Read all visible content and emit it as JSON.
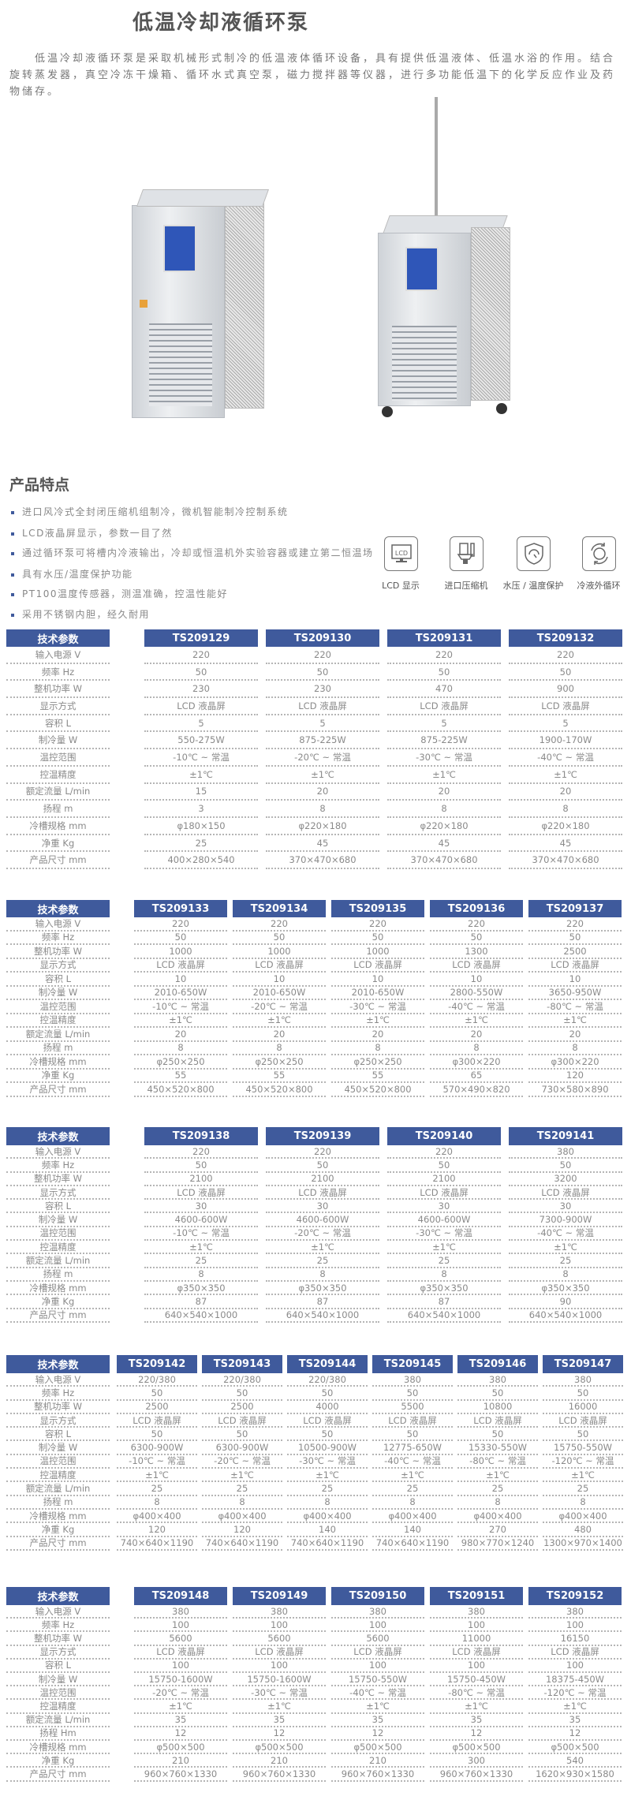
{
  "title": "低温冷却液循环泵",
  "intro": "低温冷却液循环泵是采取机械形式制冷的低温液体循环设备，具有提供低温液体、低温水浴的作用。结合旋转蒸发器，真空冷冻干燥箱、循环水式真空泵，磁力搅拌器等仪器，进行多功能低温下的化学反应作业及药物储存。",
  "features": {
    "heading": "产品特点",
    "items": [
      "进口风冷式全封闭压缩机组制冷，微机智能制冷控制系统",
      "LCD液晶屏显示，参数一目了然",
      "通过循环泵可将槽内冷液输出，冷却或恒温机外实验容器或建立第二恒温场",
      "具有水压/温度保护功能",
      "PT100温度传感器，测温准确，控温性能好",
      "采用不锈钢内胆，经久耐用"
    ],
    "icons": [
      {
        "icon": "lcd-icon",
        "label": "LCD 显示",
        "glyph": "LCD"
      },
      {
        "icon": "compressor-icon",
        "label": "进口压缩机"
      },
      {
        "icon": "shield-gauge-icon",
        "label": "水压 / 温度保护"
      },
      {
        "icon": "circulation-icon",
        "label": "冷液外循环"
      }
    ]
  },
  "colors": {
    "header": "#3f5a9c",
    "text": "#888888"
  },
  "tables": [
    {
      "header": "技术参数",
      "models": [
        "TS209129",
        "TS209130",
        "TS209131",
        "TS209132"
      ],
      "rows": [
        {
          "label": "输入电源 V",
          "values": [
            "220",
            "220",
            "220",
            "220"
          ]
        },
        {
          "label": "频率 Hz",
          "values": [
            "50",
            "50",
            "50",
            "50"
          ]
        },
        {
          "label": "整机功率 W",
          "values": [
            "230",
            "230",
            "470",
            "900"
          ]
        },
        {
          "label": "显示方式",
          "values": [
            "LCD 液晶屏",
            "LCD 液晶屏",
            "LCD 液晶屏",
            "LCD 液晶屏"
          ]
        },
        {
          "label": "容积 L",
          "values": [
            "5",
            "5",
            "5",
            "5"
          ]
        },
        {
          "label": "制冷量 W",
          "values": [
            "550-275W",
            "875-225W",
            "875-225W",
            "1900-170W"
          ]
        },
        {
          "label": "温控范围",
          "values": [
            "-10℃ ~ 常温",
            "-20℃ ~ 常温",
            "-30℃ ~ 常温",
            "-40℃ ~ 常温"
          ]
        },
        {
          "label": "控温精度",
          "values": [
            "±1℃",
            "±1℃",
            "±1℃",
            "±1℃"
          ]
        },
        {
          "label": "额定流量 L/min",
          "values": [
            "15",
            "20",
            "20",
            "20"
          ]
        },
        {
          "label": "扬程 m",
          "values": [
            "3",
            "8",
            "8",
            "8"
          ]
        },
        {
          "label": "冷槽规格 mm",
          "values": [
            "φ180×150",
            "φ220×180",
            "φ220×180",
            "φ220×180"
          ]
        },
        {
          "label": "净重 Kg",
          "values": [
            "25",
            "45",
            "45",
            "45"
          ]
        },
        {
          "label": "产品尺寸 mm",
          "values": [
            "400×280×540",
            "370×470×680",
            "370×470×680",
            "370×470×680"
          ]
        }
      ]
    },
    {
      "header": "技术参数",
      "models": [
        "TS209133",
        "TS209134",
        "TS209135",
        "TS209136",
        "TS209137"
      ],
      "rows": [
        {
          "label": "输入电源 V",
          "values": [
            "220",
            "220",
            "220",
            "220",
            "220"
          ]
        },
        {
          "label": "频率 Hz",
          "values": [
            "50",
            "50",
            "50",
            "50",
            "50"
          ]
        },
        {
          "label": "整机功率 W",
          "values": [
            "1000",
            "1000",
            "1000",
            "1300",
            "2500"
          ]
        },
        {
          "label": "显示方式",
          "values": [
            "LCD 液晶屏",
            "LCD 液晶屏",
            "LCD 液晶屏",
            "LCD 液晶屏",
            "LCD 液晶屏"
          ]
        },
        {
          "label": "容积 L",
          "values": [
            "10",
            "10",
            "10",
            "10",
            "10"
          ]
        },
        {
          "label": "制冷量 W",
          "values": [
            "2010-650W",
            "2010-650W",
            "2010-650W",
            "2800-550W",
            "3650-950W"
          ]
        },
        {
          "label": "温控范围",
          "values": [
            "-10℃ ~ 常温",
            "-20℃ ~ 常温",
            "-30℃ ~ 常温",
            "-40℃ ~ 常温",
            "-80℃ ~ 常温"
          ]
        },
        {
          "label": "控温精度",
          "values": [
            "±1℃",
            "±1℃",
            "±1℃",
            "±1℃",
            "±1℃"
          ]
        },
        {
          "label": "额定流量 L/min",
          "values": [
            "20",
            "20",
            "20",
            "20",
            "20"
          ]
        },
        {
          "label": "扬程 m",
          "values": [
            "8",
            "8",
            "8",
            "8",
            "8"
          ]
        },
        {
          "label": "冷槽规格 mm",
          "values": [
            "φ250×250",
            "φ250×250",
            "φ250×250",
            "φ300×220",
            "φ300×220"
          ]
        },
        {
          "label": "净重 Kg",
          "values": [
            "55",
            "55",
            "55",
            "65",
            "120"
          ]
        },
        {
          "label": "产品尺寸 mm",
          "values": [
            "450×520×800",
            "450×520×800",
            "450×520×800",
            "570×490×820",
            "730×580×890"
          ]
        }
      ]
    },
    {
      "header": "技术参数",
      "models": [
        "TS209138",
        "TS209139",
        "TS209140",
        "TS209141"
      ],
      "rows": [
        {
          "label": "输入电源 V",
          "values": [
            "220",
            "220",
            "220",
            "380"
          ]
        },
        {
          "label": "频率 Hz",
          "values": [
            "50",
            "50",
            "50",
            "50"
          ]
        },
        {
          "label": "整机功率 W",
          "values": [
            "2100",
            "2100",
            "2100",
            "3200"
          ]
        },
        {
          "label": "显示方式",
          "values": [
            "LCD 液晶屏",
            "LCD 液晶屏",
            "LCD 液晶屏",
            "LCD 液晶屏"
          ]
        },
        {
          "label": "容积 L",
          "values": [
            "30",
            "30",
            "30",
            "30"
          ]
        },
        {
          "label": "制冷量 W",
          "values": [
            "4600-600W",
            "4600-600W",
            "4600-600W",
            "7300-900W"
          ]
        },
        {
          "label": "温控范围",
          "values": [
            "-10℃ ~ 常温",
            "-20℃ ~ 常温",
            "-30℃ ~ 常温",
            "-40℃ ~ 常温"
          ]
        },
        {
          "label": "控温精度",
          "values": [
            "±1℃",
            "±1℃",
            "±1℃",
            "±1℃"
          ]
        },
        {
          "label": "额定流量 L/min",
          "values": [
            "25",
            "25",
            "25",
            "25"
          ]
        },
        {
          "label": "扬程 m",
          "values": [
            "8",
            "8",
            "8",
            "8"
          ]
        },
        {
          "label": "冷槽规格 mm",
          "values": [
            "φ350×350",
            "φ350×350",
            "φ350×350",
            "φ350×350"
          ]
        },
        {
          "label": "净重 Kg",
          "values": [
            "87",
            "87",
            "87",
            "90"
          ]
        },
        {
          "label": "产品尺寸 mm",
          "values": [
            "640×540×1000",
            "640×540×1000",
            "640×540×1000",
            "640×540×1000"
          ]
        }
      ]
    },
    {
      "header": "技术参数",
      "models": [
        "TS209142",
        "TS209143",
        "TS209144",
        "TS209145",
        "TS209146",
        "TS209147"
      ],
      "rows": [
        {
          "label": "输入电源 V",
          "values": [
            "220/380",
            "220/380",
            "220/380",
            "380",
            "380",
            "380"
          ]
        },
        {
          "label": "频率 Hz",
          "values": [
            "50",
            "50",
            "50",
            "50",
            "50",
            "50"
          ]
        },
        {
          "label": "整机功率 W",
          "values": [
            "2500",
            "2500",
            "4000",
            "5500",
            "10800",
            "16000"
          ]
        },
        {
          "label": "显示方式",
          "values": [
            "LCD 液晶屏",
            "LCD 液晶屏",
            "LCD 液晶屏",
            "LCD 液晶屏",
            "LCD 液晶屏",
            "LCD 液晶屏"
          ]
        },
        {
          "label": "容积 L",
          "values": [
            "50",
            "50",
            "50",
            "50",
            "50",
            "50"
          ]
        },
        {
          "label": "制冷量 W",
          "values": [
            "6300-900W",
            "6300-900W",
            "10500-900W",
            "12775-650W",
            "15330-550W",
            "15750-550W"
          ]
        },
        {
          "label": "温控范围",
          "values": [
            "-10℃ ~ 常温",
            "-20℃ ~ 常温",
            "-30℃ ~ 常温",
            "-40℃ ~ 常温",
            "-80℃ ~ 常温",
            "-120℃ ~ 常温"
          ]
        },
        {
          "label": "控温精度",
          "values": [
            "±1℃",
            "±1℃",
            "±1℃",
            "±1℃",
            "±1℃",
            "±1℃"
          ]
        },
        {
          "label": "额定流量 L/min",
          "values": [
            "25",
            "25",
            "25",
            "25",
            "25",
            "25"
          ]
        },
        {
          "label": "扬程 m",
          "values": [
            "8",
            "8",
            "8",
            "8",
            "8",
            "8"
          ]
        },
        {
          "label": "冷槽规格 mm",
          "values": [
            "φ400×400",
            "φ400×400",
            "φ400×400",
            "φ400×400",
            "φ400×400",
            "φ400×400"
          ]
        },
        {
          "label": "净重 Kg",
          "values": [
            "120",
            "120",
            "140",
            "140",
            "270",
            "480"
          ]
        },
        {
          "label": "产品尺寸 mm",
          "values": [
            "740×640×1190",
            "740×640×1190",
            "740×640×1190",
            "740×640×1190",
            "980×770×1240",
            "1300×970×1400"
          ]
        }
      ]
    },
    {
      "header": "技术参数",
      "models": [
        "TS209148",
        "TS209149",
        "TS209150",
        "TS209151",
        "TS209152"
      ],
      "rows": [
        {
          "label": "输入电源 V",
          "values": [
            "380",
            "380",
            "380",
            "380",
            "380"
          ]
        },
        {
          "label": "频率 Hz",
          "values": [
            "100",
            "100",
            "100",
            "100",
            "100"
          ]
        },
        {
          "label": "整机功率 W",
          "values": [
            "5600",
            "5600",
            "5600",
            "11000",
            "16150"
          ]
        },
        {
          "label": "显示方式",
          "values": [
            "LCD 液晶屏",
            "LCD 液晶屏",
            "LCD 液晶屏",
            "LCD 液晶屏",
            "LCD 液晶屏"
          ]
        },
        {
          "label": "容积 L",
          "values": [
            "100",
            "100",
            "100",
            "100",
            "100"
          ]
        },
        {
          "label": "制冷量 W",
          "values": [
            "15750-1600W",
            "15750-1600W",
            "15750-550W",
            "15750-450W",
            "18375-450W"
          ]
        },
        {
          "label": "温控范围",
          "values": [
            "-20℃ ~ 常温",
            "-30℃ ~ 常温",
            "-40℃ ~ 常温",
            "-80℃ ~ 常温",
            "-120℃ ~ 常温"
          ]
        },
        {
          "label": "控温精度",
          "values": [
            "±1℃",
            "±1℃",
            "±1℃",
            "±1℃",
            "±1℃"
          ]
        },
        {
          "label": "额定流量 L/min",
          "values": [
            "35",
            "35",
            "35",
            "35",
            "35"
          ]
        },
        {
          "label": "扬程 Hm",
          "values": [
            "12",
            "12",
            "12",
            "12",
            "12"
          ]
        },
        {
          "label": "冷槽规格 mm",
          "values": [
            "φ500×500",
            "φ500×500",
            "φ500×500",
            "φ500×500",
            "φ500×500"
          ]
        },
        {
          "label": "净重 Kg",
          "values": [
            "210",
            "210",
            "210",
            "300",
            "540"
          ]
        },
        {
          "label": "产品尺寸 mm",
          "values": [
            "960×760×1330",
            "960×760×1330",
            "960×760×1330",
            "960×760×1330",
            "1620×930×1580"
          ]
        }
      ]
    }
  ]
}
